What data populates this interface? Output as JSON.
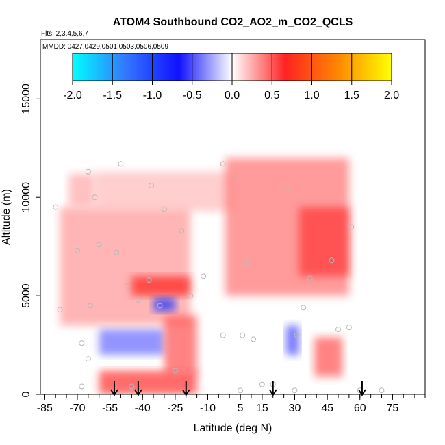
{
  "chart_data": {
    "type": "heatmap",
    "title": "ATOM4 Southbound CO2_AO2_m_CO2_QCLS",
    "subtitle": "Flts: 2,3,4,5,6,7",
    "annotation": "MMDD: 0427,0429,0501,0503,0506,0509",
    "xlabel": "Latitude (deg N)",
    "ylabel": "Altitude (m)",
    "xlim": [
      -87,
      90
    ],
    "ylim": [
      0,
      18000
    ],
    "x_ticks": [
      -85,
      -70,
      -55,
      -40,
      -25,
      -10,
      5,
      15,
      30,
      45,
      60,
      75
    ],
    "y_ticks": [
      0,
      5000,
      10000,
      15000
    ],
    "colorbar": {
      "range": [
        -2.0,
        2.0
      ],
      "ticks": [
        -2.0,
        -1.5,
        -1.0,
        -0.5,
        0.0,
        0.5,
        1.0,
        1.5,
        2.0
      ],
      "tick_labels": [
        "-2.0",
        "-1.5",
        "-1.0",
        "-0.5",
        "0.0",
        "0.5",
        "1.0",
        "1.5",
        "2.0"
      ],
      "colors": [
        "#00ffff",
        "#3377ff",
        "#1111ff",
        "#ffffff",
        "#ff2222",
        "#ff8800",
        "#ffff00"
      ]
    },
    "regions": [
      {
        "lat": [
          -78,
          -18
        ],
        "alt": [
          3500,
          9500
        ],
        "value": 0.3
      },
      {
        "lat": [
          -62,
          2
        ],
        "alt": [
          9300,
          11300
        ],
        "value": 0.2
      },
      {
        "lat": [
          -74,
          -62
        ],
        "alt": [
          9500,
          11200
        ],
        "value": 0.25
      },
      {
        "lat": [
          -2,
          55
        ],
        "alt": [
          5000,
          12000
        ],
        "value": 0.4
      },
      {
        "lat": [
          32,
          55
        ],
        "alt": [
          6000,
          9500
        ],
        "value": 0.6
      },
      {
        "lat": [
          -45,
          -18
        ],
        "alt": [
          5000,
          6000
        ],
        "value": 0.7
      },
      {
        "lat": [
          -60,
          -30
        ],
        "alt": [
          2000,
          3300
        ],
        "value": -0.4
      },
      {
        "lat": [
          -35,
          -25
        ],
        "alt": [
          4200,
          4900
        ],
        "value": -0.9
      },
      {
        "lat": [
          26,
          32
        ],
        "alt": [
          2000,
          3500
        ],
        "value": -0.5
      },
      {
        "lat": [
          -60,
          -15
        ],
        "alt": [
          0,
          1200
        ],
        "value": 0.6
      },
      {
        "lat": [
          -30,
          -15
        ],
        "alt": [
          1000,
          4000
        ],
        "value": 0.5
      },
      {
        "lat": [
          39,
          52
        ],
        "alt": [
          900,
          2900
        ],
        "value": 0.5
      }
    ],
    "sample_points": [
      [
        -68,
        400
      ],
      [
        -65,
        1800
      ],
      [
        -64,
        4500
      ],
      [
        -68,
        2600
      ],
      [
        -70,
        7300
      ],
      [
        -65,
        11300
      ],
      [
        -80,
        9500
      ],
      [
        -78,
        4300
      ],
      [
        -62,
        10000
      ],
      [
        -60,
        7600
      ],
      [
        -52,
        7200
      ],
      [
        -50,
        11700
      ],
      [
        -47,
        5500
      ],
      [
        -42,
        4800
      ],
      [
        -37,
        5800
      ],
      [
        -36,
        10600
      ],
      [
        -32,
        4500
      ],
      [
        -30,
        9400
      ],
      [
        -22,
        8300
      ],
      [
        -18,
        5000
      ],
      [
        -12,
        6000
      ],
      [
        -3,
        11700
      ],
      [
        -3,
        3000
      ],
      [
        2,
        11000
      ],
      [
        6,
        3000
      ],
      [
        8,
        6700
      ],
      [
        11,
        2800
      ],
      [
        15,
        500
      ],
      [
        20,
        500
      ],
      [
        26,
        10400
      ],
      [
        31,
        3000
      ],
      [
        34,
        4400
      ],
      [
        37,
        5900
      ],
      [
        47,
        6800
      ],
      [
        50,
        3300
      ],
      [
        55,
        3400
      ],
      [
        56,
        8500
      ],
      [
        60,
        200
      ],
      [
        70,
        200
      ],
      [
        -45,
        400
      ],
      [
        -25,
        1200
      ],
      [
        5,
        200
      ],
      [
        30,
        200
      ]
    ],
    "markers_lat": [
      -53,
      -42,
      -20,
      20,
      61
    ]
  }
}
